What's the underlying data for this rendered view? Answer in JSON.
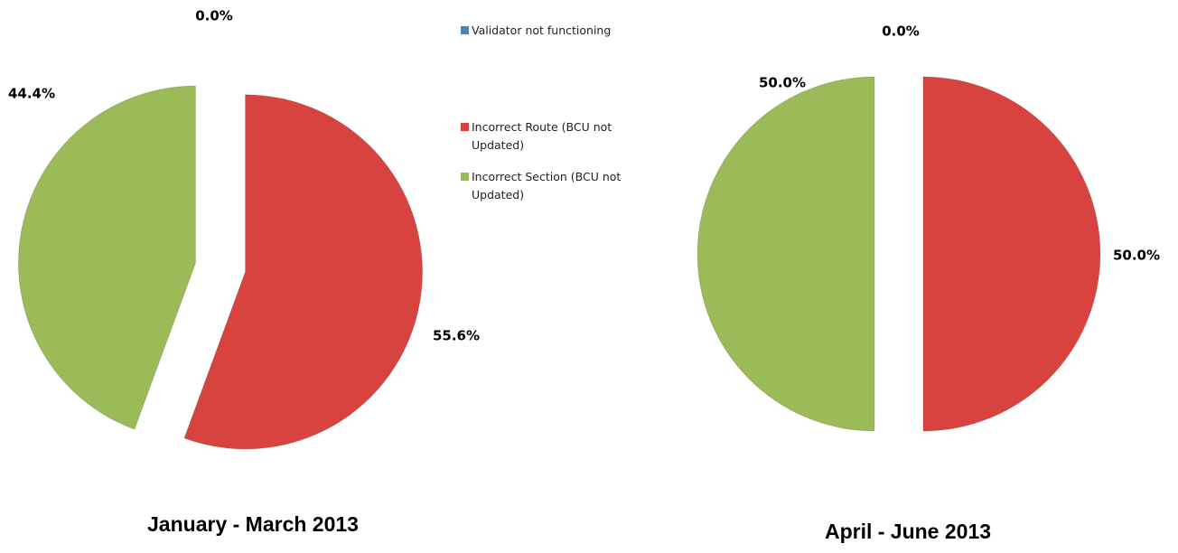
{
  "chart_data": [
    {
      "type": "pie",
      "title": "January -  March 2013",
      "categories": [
        "Validator not functioning",
        "Incorrect Route (BCU not Updated)",
        "Incorrect Section (BCU not Updated)"
      ],
      "values": [
        0,
        55.6,
        44.4
      ],
      "value_labels": [
        "0.0%",
        "55.6%",
        "44.4%"
      ],
      "colors": [
        "#4f81bd",
        "#d9433f",
        "#9bbb59"
      ]
    },
    {
      "type": "pie",
      "title": "April  - June 2013",
      "categories": [
        "Validator not functioning",
        "Incorrect Route (BCU not Updated)",
        "Incorrect Section (BCU not Updated)"
      ],
      "values": [
        0,
        50,
        50
      ],
      "value_labels": [
        "0.0%",
        "50.0%",
        "50.0%"
      ],
      "colors": [
        "#4f81bd",
        "#d9433f",
        "#9bbb59"
      ]
    }
  ]
}
